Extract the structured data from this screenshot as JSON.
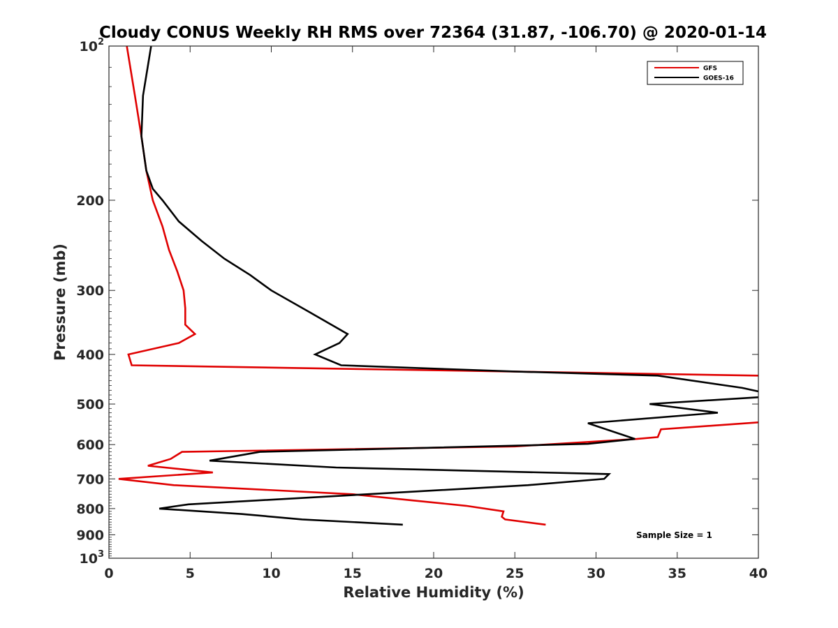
{
  "chart_data": {
    "type": "line",
    "title": "Cloudy CONUS Weekly RH RMS over 72364 (31.87, -106.70) @ 2020-01-14",
    "xlabel": "Relative Humidity (%)",
    "ylabel": "Pressure (mb)",
    "xlim": [
      0,
      40
    ],
    "ylim": [
      100,
      1000
    ],
    "y_scale": "log",
    "y_reversed": true,
    "grid": false,
    "legend_position": "top-right",
    "x_ticks": [
      0,
      5,
      10,
      15,
      20,
      25,
      30,
      35,
      40
    ],
    "y_ticks": [
      {
        "value": 100,
        "label": "10",
        "sup": "2"
      },
      {
        "value": 200,
        "label": "200",
        "sup": ""
      },
      {
        "value": 300,
        "label": "300",
        "sup": ""
      },
      {
        "value": 400,
        "label": "400",
        "sup": ""
      },
      {
        "value": 500,
        "label": "500",
        "sup": ""
      },
      {
        "value": 600,
        "label": "600",
        "sup": ""
      },
      {
        "value": 700,
        "label": "700",
        "sup": ""
      },
      {
        "value": 800,
        "label": "800",
        "sup": ""
      },
      {
        "value": 900,
        "label": "900",
        "sup": ""
      },
      {
        "value": 1000,
        "label": "10",
        "sup": "3"
      }
    ],
    "series": [
      {
        "name": "GFS",
        "color": "#e00000",
        "points": [
          [
            1.1,
            100
          ],
          [
            1.6,
            125
          ],
          [
            2.0,
            150
          ],
          [
            2.3,
            175
          ],
          [
            2.7,
            200
          ],
          [
            3.3,
            225
          ],
          [
            3.7,
            250
          ],
          [
            4.2,
            275
          ],
          [
            4.6,
            300
          ],
          [
            4.7,
            325
          ],
          [
            4.7,
            350
          ],
          [
            5.3,
            365
          ],
          [
            4.3,
            380
          ],
          [
            1.2,
            400
          ],
          [
            1.4,
            420
          ],
          [
            40.0,
            440
          ],
          [
            41.0,
            445
          ],
          [
            41.0,
            540
          ],
          [
            40.0,
            543
          ],
          [
            34.0,
            560
          ],
          [
            33.8,
            580
          ],
          [
            32.5,
            585
          ],
          [
            25.0,
            605
          ],
          [
            4.5,
            620
          ],
          [
            3.8,
            640
          ],
          [
            2.4,
            660
          ],
          [
            6.4,
            680
          ],
          [
            0.6,
            700
          ],
          [
            4.0,
            720
          ],
          [
            15.0,
            750
          ],
          [
            18.5,
            770
          ],
          [
            22.0,
            790
          ],
          [
            24.3,
            810
          ],
          [
            24.2,
            830
          ],
          [
            24.4,
            840
          ],
          [
            26.9,
            860
          ]
        ]
      },
      {
        "name": "GOES-16",
        "color": "#000000",
        "points": [
          [
            2.6,
            100
          ],
          [
            2.1,
            125
          ],
          [
            2.0,
            150
          ],
          [
            2.3,
            175
          ],
          [
            2.7,
            190
          ],
          [
            3.3,
            200
          ],
          [
            4.3,
            220
          ],
          [
            5.7,
            240
          ],
          [
            7.1,
            260
          ],
          [
            8.7,
            280
          ],
          [
            10.0,
            300
          ],
          [
            12.3,
            330
          ],
          [
            14.7,
            365
          ],
          [
            14.2,
            380
          ],
          [
            12.7,
            400
          ],
          [
            14.3,
            420
          ],
          [
            25.0,
            432
          ],
          [
            33.8,
            440
          ],
          [
            39.0,
            465
          ],
          [
            41.0,
            480
          ],
          [
            41.0,
            485
          ],
          [
            40.0,
            485
          ],
          [
            33.3,
            500
          ],
          [
            37.5,
            520
          ],
          [
            29.5,
            545
          ],
          [
            32.4,
            585
          ],
          [
            29.5,
            598
          ],
          [
            9.3,
            620
          ],
          [
            6.2,
            645
          ],
          [
            14.0,
            665
          ],
          [
            30.8,
            685
          ],
          [
            30.5,
            700
          ],
          [
            25.8,
            720
          ],
          [
            4.9,
            785
          ],
          [
            3.1,
            800
          ],
          [
            8.2,
            820
          ],
          [
            11.9,
            840
          ],
          [
            18.1,
            860
          ]
        ]
      }
    ],
    "annotation": "Sample Size = 1"
  }
}
